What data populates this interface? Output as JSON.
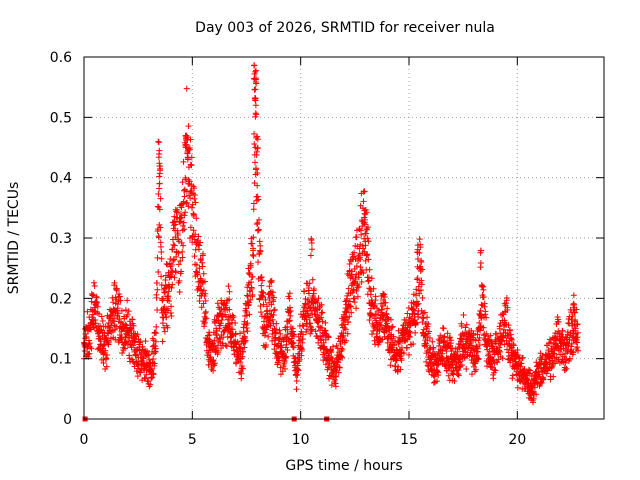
{
  "chart_data": {
    "type": "scatter",
    "title": "Day 003 of 2026, SRMTID for receiver nula",
    "xlabel": "GPS time / hours",
    "ylabel": "SRMTID / TECUs",
    "xlim": [
      0,
      24
    ],
    "ylim": [
      0,
      0.6
    ],
    "x_ticks": [
      0,
      5,
      10,
      15,
      20
    ],
    "y_ticks": [
      0,
      0.1,
      0.2,
      0.3,
      0.4,
      0.5,
      0.6
    ],
    "x_tick_labels": [
      "0",
      "5",
      "10",
      "15",
      "20"
    ],
    "y_tick_labels": [
      "0",
      "0.1",
      "0.2",
      "0.3",
      "0.4",
      "0.5",
      "0.6"
    ],
    "grid": true,
    "marker": "plus",
    "color": "#ff0000",
    "series": [
      {
        "name": "SRMTID",
        "profile": [
          [
            0.0,
            0.13
          ],
          [
            0.3,
            0.15
          ],
          [
            0.5,
            0.2
          ],
          [
            0.7,
            0.14
          ],
          [
            1.0,
            0.12
          ],
          [
            1.2,
            0.16
          ],
          [
            1.5,
            0.18
          ],
          [
            1.8,
            0.14
          ],
          [
            2.0,
            0.15
          ],
          [
            2.3,
            0.12
          ],
          [
            2.6,
            0.1
          ],
          [
            2.9,
            0.09
          ],
          [
            3.1,
            0.08
          ],
          [
            3.3,
            0.13
          ],
          [
            3.5,
            0.42
          ],
          [
            3.6,
            0.18
          ],
          [
            3.8,
            0.2
          ],
          [
            4.0,
            0.22
          ],
          [
            4.2,
            0.3
          ],
          [
            4.4,
            0.28
          ],
          [
            4.6,
            0.35
          ],
          [
            4.75,
            0.45
          ],
          [
            4.9,
            0.38
          ],
          [
            5.1,
            0.32
          ],
          [
            5.3,
            0.25
          ],
          [
            5.5,
            0.22
          ],
          [
            5.7,
            0.12
          ],
          [
            5.9,
            0.1
          ],
          [
            6.1,
            0.14
          ],
          [
            6.4,
            0.16
          ],
          [
            6.7,
            0.18
          ],
          [
            7.0,
            0.12
          ],
          [
            7.3,
            0.1
          ],
          [
            7.6,
            0.22
          ],
          [
            7.8,
            0.25
          ],
          [
            7.9,
            0.56
          ],
          [
            8.0,
            0.35
          ],
          [
            8.1,
            0.24
          ],
          [
            8.3,
            0.15
          ],
          [
            8.6,
            0.2
          ],
          [
            8.9,
            0.12
          ],
          [
            9.2,
            0.1
          ],
          [
            9.5,
            0.18
          ],
          [
            9.8,
            0.07
          ],
          [
            10.1,
            0.16
          ],
          [
            10.4,
            0.2
          ],
          [
            10.7,
            0.18
          ],
          [
            11.0,
            0.15
          ],
          [
            11.3,
            0.1
          ],
          [
            11.6,
            0.08
          ],
          [
            11.9,
            0.13
          ],
          [
            12.2,
            0.2
          ],
          [
            12.5,
            0.24
          ],
          [
            12.8,
            0.3
          ],
          [
            13.0,
            0.32
          ],
          [
            13.2,
            0.2
          ],
          [
            13.5,
            0.15
          ],
          [
            13.8,
            0.18
          ],
          [
            14.1,
            0.13
          ],
          [
            14.4,
            0.1
          ],
          [
            14.7,
            0.12
          ],
          [
            15.0,
            0.15
          ],
          [
            15.3,
            0.17
          ],
          [
            15.5,
            0.24
          ],
          [
            15.7,
            0.15
          ],
          [
            16.0,
            0.1
          ],
          [
            16.3,
            0.09
          ],
          [
            16.6,
            0.12
          ],
          [
            16.9,
            0.1
          ],
          [
            17.2,
            0.09
          ],
          [
            17.5,
            0.13
          ],
          [
            17.8,
            0.12
          ],
          [
            18.1,
            0.1
          ],
          [
            18.4,
            0.2
          ],
          [
            18.6,
            0.12
          ],
          [
            18.9,
            0.1
          ],
          [
            19.2,
            0.13
          ],
          [
            19.5,
            0.16
          ],
          [
            19.8,
            0.1
          ],
          [
            20.1,
            0.08
          ],
          [
            20.4,
            0.07
          ],
          [
            20.7,
            0.05
          ],
          [
            21.0,
            0.08
          ],
          [
            21.3,
            0.09
          ],
          [
            21.6,
            0.1
          ],
          [
            21.9,
            0.13
          ],
          [
            22.2,
            0.11
          ],
          [
            22.5,
            0.15
          ],
          [
            22.8,
            0.14
          ]
        ],
        "spikes": [
          [
            3.45,
            0.46
          ],
          [
            3.5,
            0.43
          ],
          [
            4.7,
            0.47
          ],
          [
            4.8,
            0.46
          ],
          [
            7.88,
            0.59
          ],
          [
            7.95,
            0.585
          ],
          [
            7.9,
            0.56
          ],
          [
            7.93,
            0.53
          ],
          [
            8.0,
            0.47
          ],
          [
            12.95,
            0.36
          ],
          [
            18.3,
            0.28
          ],
          [
            15.4,
            0.29
          ],
          [
            10.5,
            0.3
          ],
          [
            22.6,
            0.21
          ]
        ],
        "zero_points": [
          0.05,
          9.7,
          11.2
        ]
      }
    ]
  }
}
